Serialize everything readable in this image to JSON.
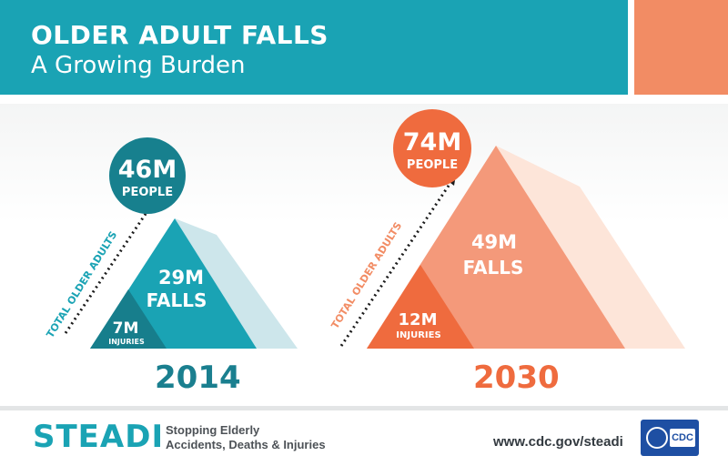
{
  "header": {
    "title": "OLDER ADULT FALLS",
    "subtitle": "A Growing Burden"
  },
  "panels": [
    {
      "year": "2014",
      "people_value": "46M",
      "people_label": "PEOPLE",
      "axis_label": "TOTAL OLDER ADULTS",
      "falls_value": "29M",
      "falls_label": "FALLS",
      "injuries_value": "7M",
      "injuries_label": "INJURIES",
      "color": "#1aa3b4"
    },
    {
      "year": "2030",
      "people_value": "74M",
      "people_label": "PEOPLE",
      "axis_label": "TOTAL OLDER ADULTS",
      "falls_value": "49M",
      "falls_label": "FALLS",
      "injuries_value": "12M",
      "injuries_label": "INJURIES",
      "color": "#f28c64"
    }
  ],
  "footer": {
    "logo_text": "STEADI",
    "tagline_line1": "Stopping Elderly",
    "tagline_line2": "Accidents, Deaths & Injuries",
    "url": "www.cdc.gov/steadi",
    "agency_logo": "CDC"
  },
  "colors": {
    "teal": "#1aa3b4",
    "dark_teal": "#1a7f8f",
    "orange": "#f28c64",
    "dark_orange": "#ef6b3e"
  }
}
